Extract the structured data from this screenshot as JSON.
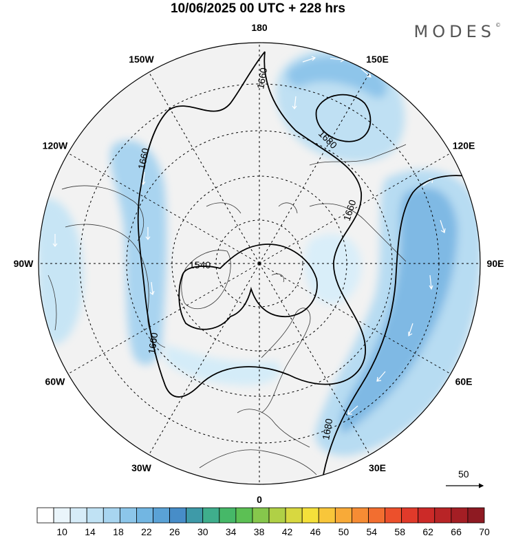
{
  "header": {
    "title": "10/06/2025  00 UTC  + 228 hrs",
    "brand": "MODES"
  },
  "map": {
    "projection": "north-polar-stereographic",
    "longitude_labels": [
      {
        "text": "180",
        "lon": 180
      },
      {
        "text": "150E",
        "lon": 150
      },
      {
        "text": "120E",
        "lon": 120
      },
      {
        "text": "90E",
        "lon": 90
      },
      {
        "text": "60E",
        "lon": 60
      },
      {
        "text": "30E",
        "lon": 30
      },
      {
        "text": "0",
        "lon": 0
      },
      {
        "text": "30W",
        "lon": -30
      },
      {
        "text": "60W",
        "lon": -60
      },
      {
        "text": "90W",
        "lon": -90
      },
      {
        "text": "120W",
        "lon": -120
      },
      {
        "text": "150W",
        "lon": -150
      }
    ],
    "contour_labels": [
      "1660",
      "1680",
      "1660",
      "1660",
      "1540",
      "1660",
      "1680"
    ],
    "wind_reference": "50"
  },
  "colorbar": {
    "tick_labels": [
      "10",
      "14",
      "18",
      "22",
      "26",
      "30",
      "34",
      "38",
      "42",
      "46",
      "50",
      "54",
      "58",
      "62",
      "66",
      "70"
    ],
    "colors": [
      "#ffffff",
      "#eaf5fb",
      "#d6ecf8",
      "#c0e2f4",
      "#a8d5f0",
      "#8cc6ea",
      "#72b6e2",
      "#5aa2d6",
      "#478dc8",
      "#3e9aa8",
      "#3fae8c",
      "#46b868",
      "#5cc054",
      "#86c74c",
      "#b0d046",
      "#d8d840",
      "#f4e03a",
      "#f8c63a",
      "#f8aa38",
      "#f68c34",
      "#f26e30",
      "#ec502c",
      "#e03a2a",
      "#cc2a28",
      "#b82426",
      "#a41e24",
      "#8e1a22"
    ]
  }
}
